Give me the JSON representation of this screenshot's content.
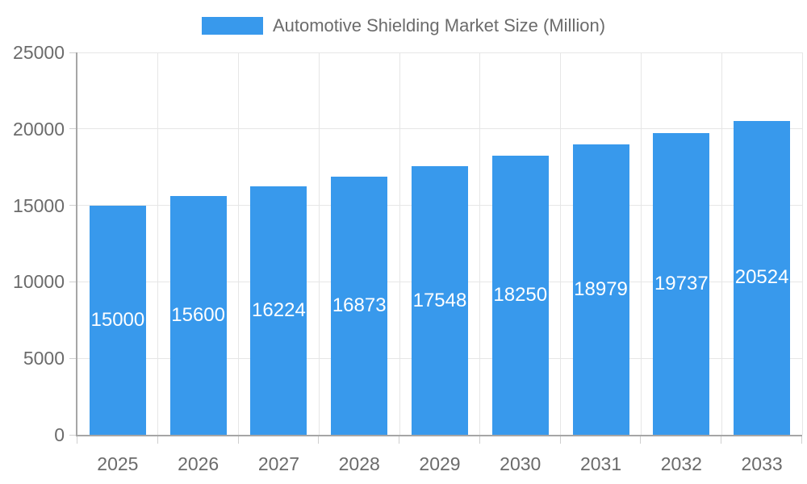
{
  "legend": {
    "position": "top",
    "label": "Automotive Shielding Market Size (Million)"
  },
  "colors": {
    "bar": "#3899ec",
    "value_label_text": "#ffffff",
    "axis_text": "#6b6b6b",
    "legend_text": "#6b6b6b",
    "grid_line": "#e6e6e6",
    "tick_mark": "#cfcfcf",
    "axis_line": "#a6a6a6",
    "background": "#ffffff"
  },
  "chart_data": {
    "type": "bar",
    "title": "Automotive Shielding Market Size (Million)",
    "categories": [
      "2025",
      "2026",
      "2027",
      "2028",
      "2029",
      "2030",
      "2031",
      "2032",
      "2033"
    ],
    "series": [
      {
        "name": "Automotive Shielding Market Size (Million)",
        "values": [
          15000,
          15600,
          16224,
          16873,
          17548,
          18250,
          18979,
          19737,
          20524
        ]
      }
    ],
    "value_labels": {
      "visible": true,
      "placement": "inside-center",
      "texts": [
        "15000",
        "15600",
        "16224",
        "16873",
        "17548",
        "18250",
        "18979",
        "19737",
        "20524"
      ]
    },
    "xlabel": "",
    "ylabel": "",
    "ylim": [
      0,
      25000
    ],
    "yticks": [
      0,
      5000,
      10000,
      15000,
      20000,
      25000
    ],
    "ytick_labels": [
      "0",
      "5000",
      "10000",
      "15000",
      "20000",
      "25000"
    ],
    "grid": true,
    "legend_position": "top"
  }
}
